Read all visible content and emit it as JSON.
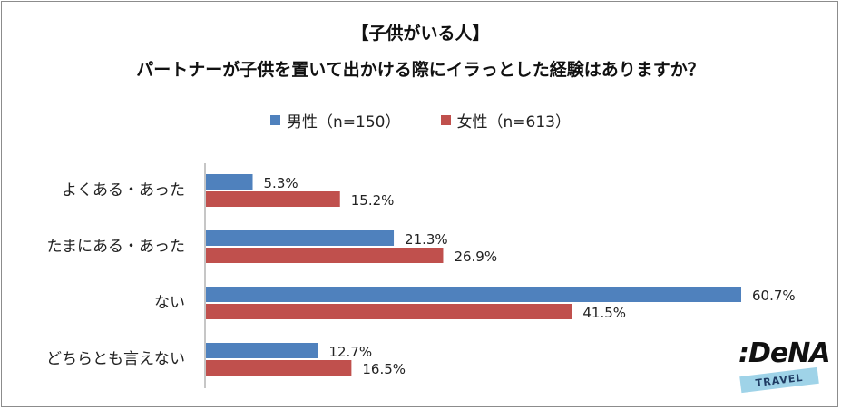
{
  "chart_data": {
    "type": "bar",
    "orientation": "horizontal",
    "title": "【子供がいる人】",
    "subtitle": "パートナーが子供を置いて出かける際にイラっとした経験はありますか？",
    "categories": [
      "よくある・あった",
      "たまにある・あった",
      "ない",
      "どちらとも言えない"
    ],
    "series": [
      {
        "name": "男性（n=150）",
        "color": "#4f81bd",
        "values": [
          5.3,
          21.3,
          60.7,
          12.7
        ],
        "labels": [
          "5.3%",
          "21.3%",
          "60.7%",
          "12.7%"
        ]
      },
      {
        "name": "女性（n=613）",
        "color": "#c0504d",
        "values": [
          15.2,
          26.9,
          41.5,
          16.5
        ],
        "labels": [
          "15.2%",
          "26.9%",
          "41.5%",
          "16.5%"
        ]
      }
    ],
    "xlim": [
      0,
      65
    ],
    "grid": false,
    "legend_position": "top-center"
  },
  "logo": {
    "word": ":DeNA",
    "sub": "TRAVEL",
    "band_color": "#9fd3e8"
  }
}
